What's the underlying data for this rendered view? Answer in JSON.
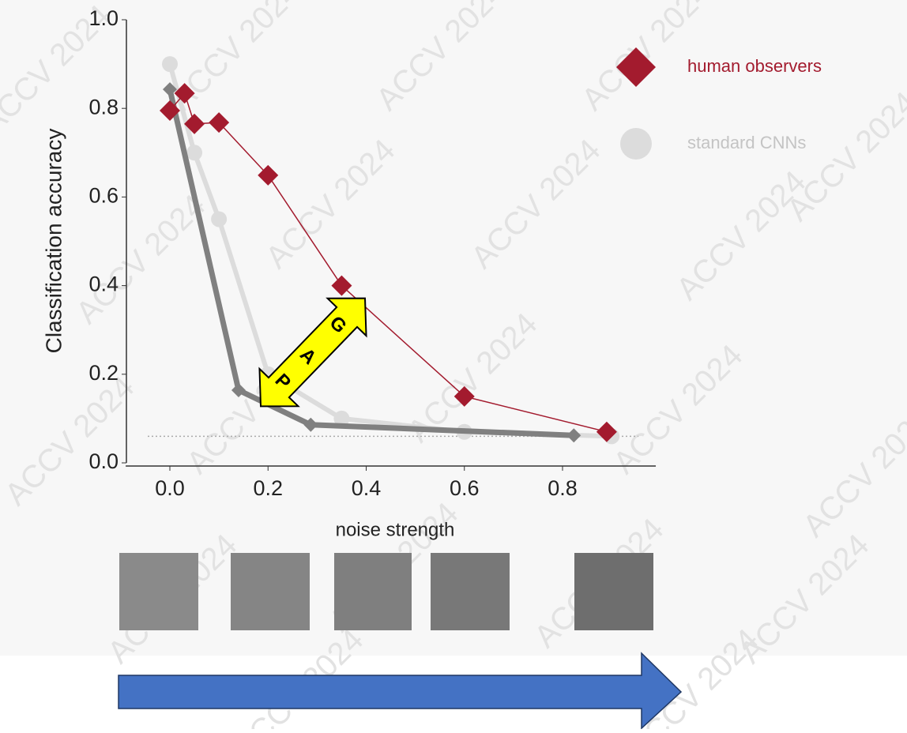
{
  "chart_data": {
    "type": "line",
    "xlabel": "noise strength",
    "ylabel": "Classification accuracy",
    "xlim": [
      -0.09,
      0.99
    ],
    "ylim": [
      0,
      1.0
    ],
    "xticks": [
      {
        "value": 0,
        "label": "0.0"
      },
      0.2,
      0.4,
      0.6,
      0.8
    ],
    "yticks": [
      {
        "value": 0,
        "label": "0.0"
      },
      0.2,
      0.4,
      0.6,
      0.8,
      {
        "value": 1,
        "label": "1.0"
      }
    ],
    "chance_line": 0.06,
    "series": [
      {
        "name": "standard CNNs",
        "color": "#dcdcdc",
        "marker": "circle",
        "x": [
          0,
          0.05,
          0.1,
          0.2,
          0.35,
          0.6,
          0.9
        ],
        "values": [
          0.9,
          0.7,
          0.55,
          0.2,
          0.1,
          0.07,
          0.06
        ]
      },
      {
        "color": "#808080",
        "marker": "diamond-small",
        "x": [
          0,
          0.14,
          0.287,
          0.823
        ],
        "values": [
          0.843,
          0.164,
          0.086,
          0.062
        ]
      },
      {
        "name": "human observers",
        "color": "#a31b2e",
        "marker": "diamond",
        "x": [
          0,
          0.03,
          0.05,
          0.1,
          0.2,
          0.35,
          0.6,
          0.89
        ],
        "values": [
          0.795,
          0.834,
          0.765,
          0.768,
          0.649,
          0.4,
          0.15,
          0.07
        ]
      }
    ],
    "annotations": [
      "G",
      "A",
      "P"
    ],
    "watermark": "ACCV 2024"
  }
}
